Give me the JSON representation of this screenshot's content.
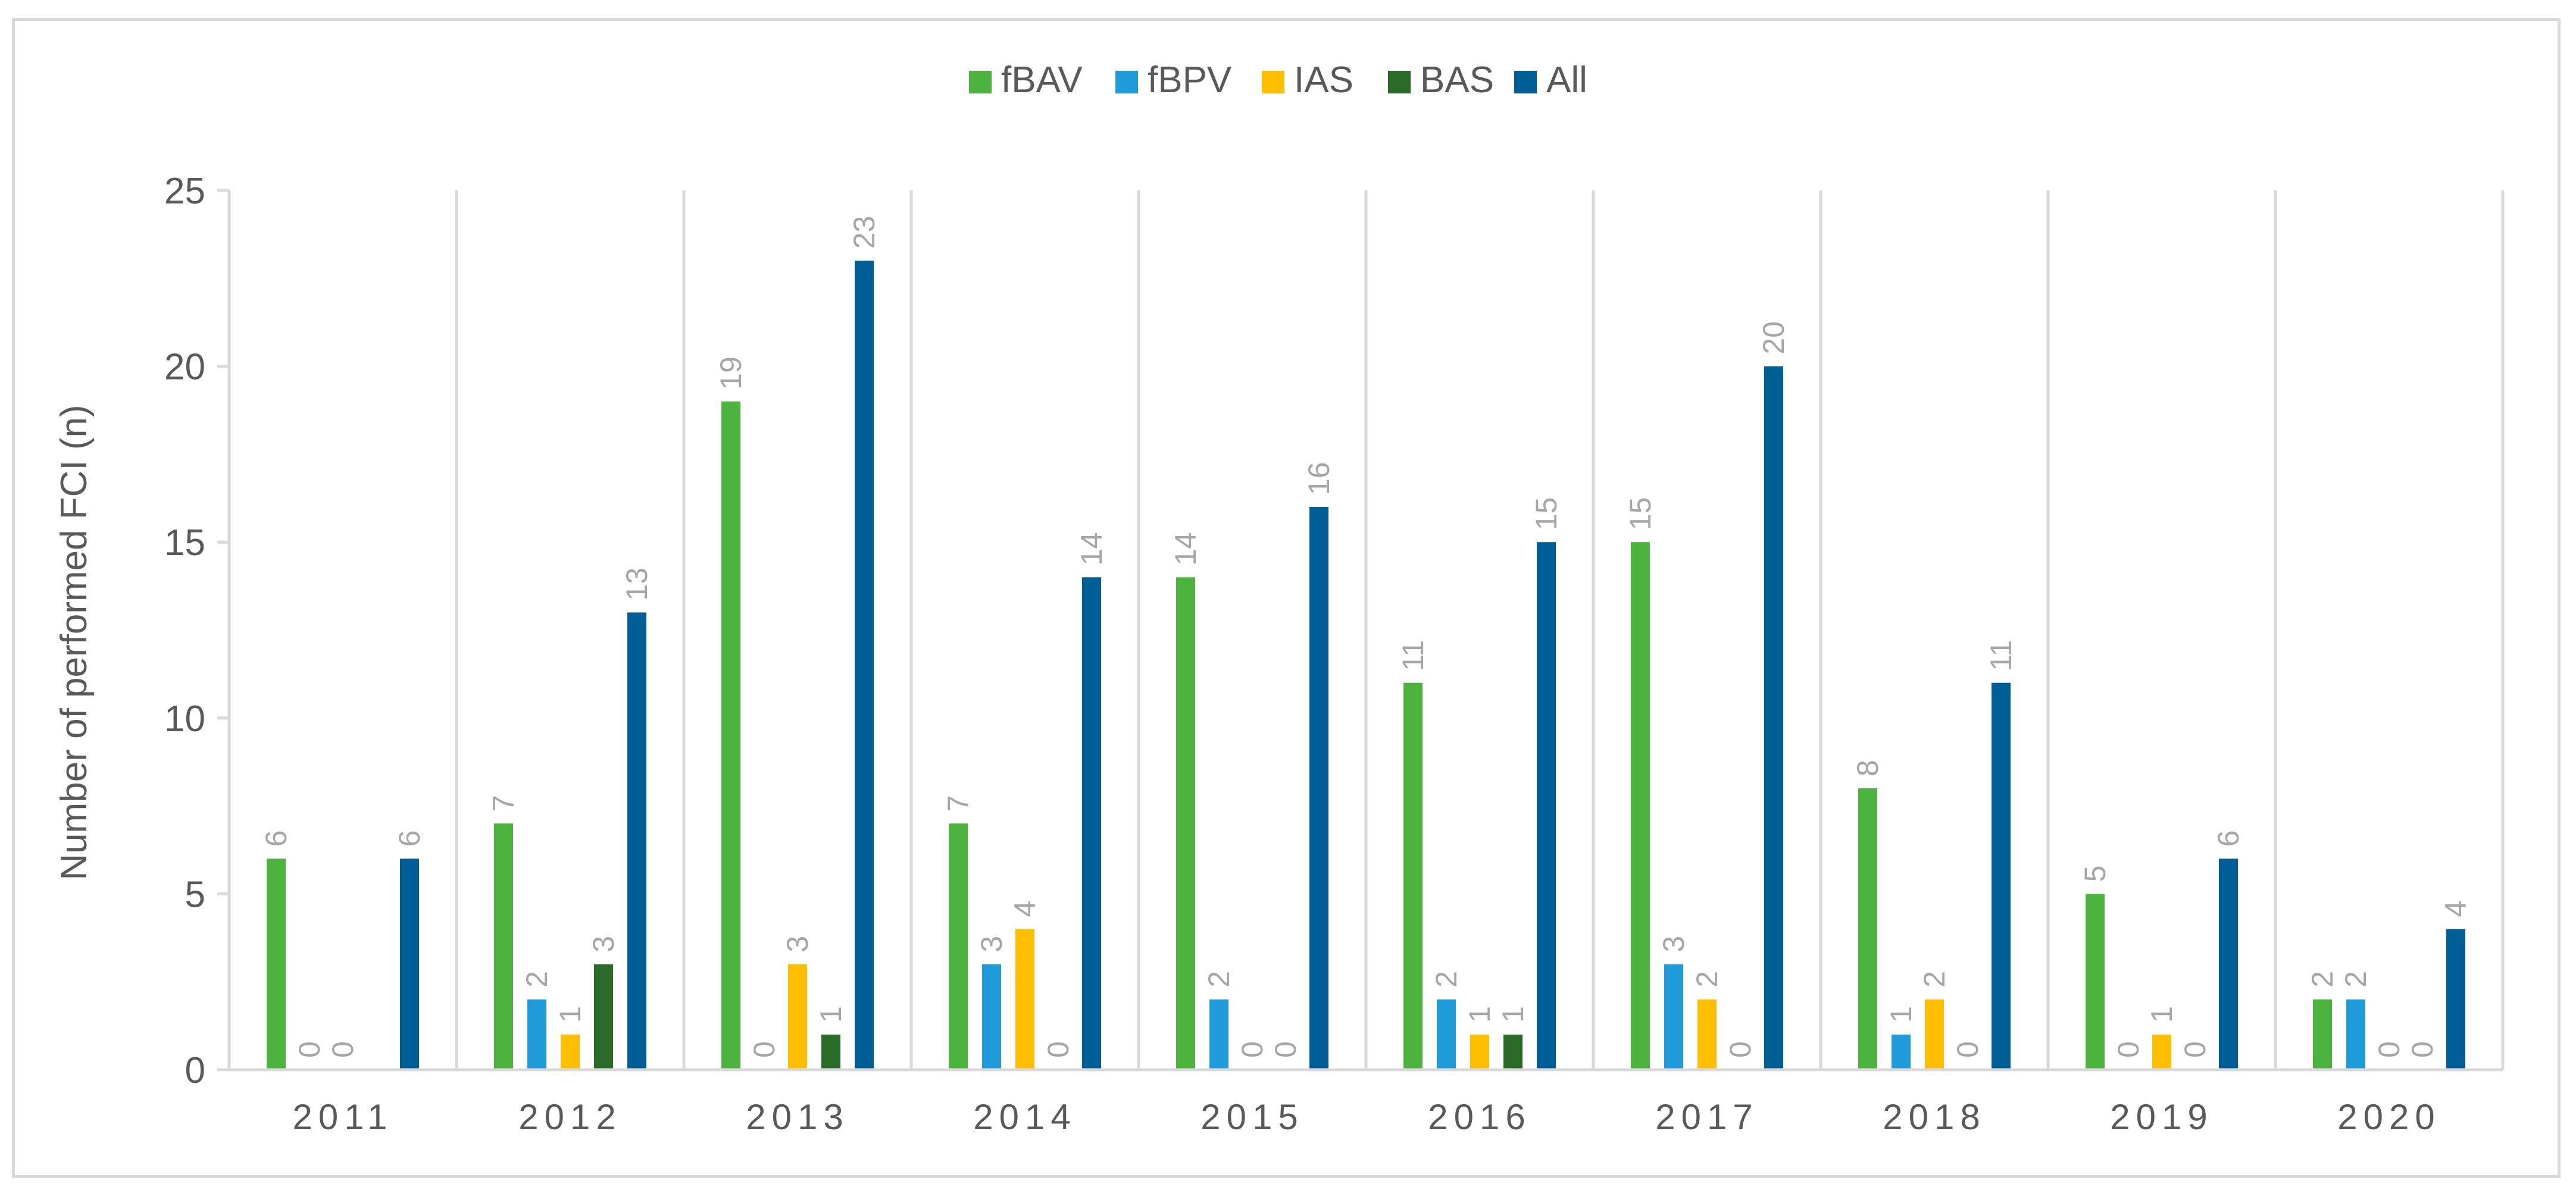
{
  "chart_data": {
    "type": "bar",
    "title": "",
    "xlabel": "",
    "ylabel": "Number of performed FCI (n)",
    "ylim": [
      0,
      25
    ],
    "yticks": [
      0,
      5,
      10,
      15,
      20,
      25
    ],
    "grid": "vertical category separators",
    "legend_position": "top-center",
    "categories": [
      "2011",
      "2012",
      "2013",
      "2014",
      "2015",
      "2016",
      "2017",
      "2018",
      "2019",
      "2020"
    ],
    "series": [
      {
        "name": "fBAV",
        "color": "#4cb33f",
        "values": [
          6,
          7,
          19,
          7,
          14,
          11,
          15,
          8,
          5,
          2
        ]
      },
      {
        "name": "fBPV",
        "color": "#1f9bd9",
        "values": [
          0,
          2,
          0,
          3,
          2,
          2,
          3,
          1,
          0,
          2
        ]
      },
      {
        "name": "IAS",
        "color": "#ffbf00",
        "values": [
          0,
          1,
          3,
          4,
          0,
          1,
          2,
          2,
          1,
          0
        ]
      },
      {
        "name": "BAS",
        "color": "#2a6b27",
        "values": [
          null,
          3,
          1,
          0,
          0,
          1,
          0,
          0,
          0,
          0
        ]
      },
      {
        "name": "All",
        "color": "#005e96",
        "values": [
          6,
          13,
          23,
          14,
          16,
          15,
          20,
          11,
          6,
          4
        ]
      }
    ]
  }
}
